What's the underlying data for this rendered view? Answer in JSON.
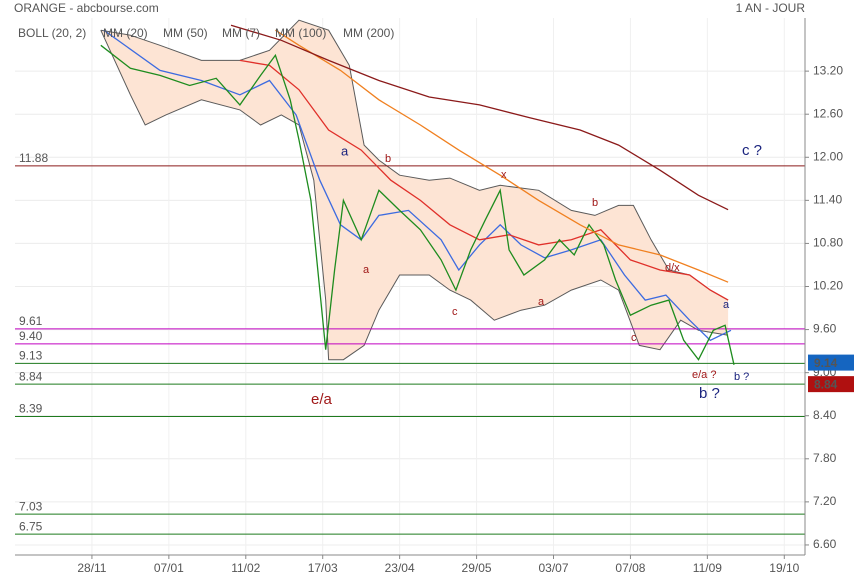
{
  "chart_data": {
    "type": "line",
    "title": "ORANGE - abcbourse.com",
    "period": "1 AN - JOUR",
    "xlim": [
      0,
      267
    ],
    "ylim": [
      6.46,
      13.94
    ],
    "xticks": [
      {
        "value": 26,
        "label": "28/11"
      },
      {
        "value": 52,
        "label": "07/01"
      },
      {
        "value": 78,
        "label": "11/02"
      },
      {
        "value": 104,
        "label": "17/03"
      },
      {
        "value": 130,
        "label": "23/04"
      },
      {
        "value": 156,
        "label": "29/05"
      },
      {
        "value": 182,
        "label": "03/07"
      },
      {
        "value": 208,
        "label": "07/08"
      },
      {
        "value": 234,
        "label": "11/09"
      },
      {
        "value": 260,
        "label": "19/10"
      }
    ],
    "yticks": [
      {
        "value": 13.2,
        "label": "13.20"
      },
      {
        "value": 12.6,
        "label": "12.60"
      },
      {
        "value": 12,
        "label": "12.00"
      },
      {
        "value": 11.4,
        "label": "11.40"
      },
      {
        "value": 10.8,
        "label": "10.80"
      },
      {
        "value": 10.2,
        "label": "10.20"
      },
      {
        "value": 9.6,
        "label": "9.60"
      },
      {
        "value": 9,
        "label": "9.00"
      },
      {
        "value": 8.4,
        "label": "8.40"
      },
      {
        "value": 7.8,
        "label": "7.80"
      },
      {
        "value": 7.2,
        "label": "7.20"
      },
      {
        "value": 6.6,
        "label": "6.60"
      }
    ],
    "grid": true,
    "bollinger": {
      "name": "BOLL (20, 2)",
      "color": "#5a5a5a",
      "fill": "#fde4d4",
      "upper": {
        "x": [
          29,
          39,
          49,
          63,
          76,
          86,
          96,
          106,
          113,
          118,
          123,
          130,
          140,
          147,
          157,
          164,
          177,
          188,
          196,
          204,
          209,
          215,
          221,
          228,
          235,
          241
        ],
        "values": [
          13.77,
          13.7,
          13.56,
          13.35,
          13.35,
          13.49,
          13.91,
          13.77,
          13.28,
          12.17,
          11.96,
          11.75,
          11.68,
          11.71,
          11.54,
          11.61,
          11.54,
          11.26,
          11.19,
          11.33,
          11.33,
          10.85,
          10.43,
          10.36,
          10.15,
          10.01
        ]
      },
      "lower": {
        "x": [
          29,
          39,
          44,
          51,
          63,
          76,
          83,
          90,
          96,
          101,
          105,
          106,
          111,
          118,
          123,
          130,
          140,
          147,
          154,
          162,
          171,
          179,
          188,
          198,
          204,
          211,
          218,
          225,
          231,
          241
        ],
        "values": [
          13.77,
          12.87,
          12.45,
          12.59,
          12.8,
          12.66,
          12.45,
          12.59,
          12.45,
          11.68,
          10.01,
          9.18,
          9.18,
          9.38,
          9.87,
          10.36,
          10.36,
          10.15,
          10.01,
          9.73,
          9.87,
          9.94,
          10.15,
          10.29,
          10.15,
          9.38,
          9.32,
          9.73,
          9.59,
          9.52
        ]
      }
    },
    "series": [
      {
        "name": "MM (20)",
        "color": "#3d6be0",
        "x": [
          30,
          49,
          63,
          76,
          86,
          95,
          103,
          110,
          117,
          123,
          133,
          144,
          150,
          157,
          164,
          171,
          179,
          188,
          198,
          206,
          213,
          220,
          228,
          235,
          242
        ],
        "values": [
          13.77,
          13.21,
          13.07,
          12.87,
          13.07,
          12.59,
          11.68,
          11.06,
          10.85,
          11.19,
          11.26,
          10.85,
          10.43,
          10.78,
          11.06,
          10.78,
          10.6,
          10.71,
          10.85,
          10.36,
          10.01,
          10.08,
          9.73,
          9.45,
          9.59
        ]
      },
      {
        "name": "MM (50)",
        "color": "#e0302a",
        "x": [
          76,
          86,
          96,
          106,
          117,
          127,
          137,
          147,
          157,
          167,
          177,
          188,
          198,
          208,
          218,
          228,
          235,
          241
        ],
        "values": [
          13.35,
          13.28,
          12.94,
          12.38,
          12.1,
          11.68,
          11.4,
          11.06,
          10.85,
          10.92,
          10.78,
          10.85,
          10.99,
          10.57,
          10.43,
          10.36,
          10.15,
          10.01
        ]
      },
      {
        "name": "MM (7)",
        "color": "#1e8c1e",
        "x": [
          29,
          39,
          49,
          59,
          68,
          76,
          83,
          88,
          93,
          96,
          100,
          102,
          105,
          108,
          111,
          117,
          123,
          130,
          137,
          144,
          149,
          154,
          159,
          164,
          167,
          172,
          179,
          184,
          189,
          194,
          199,
          203,
          208,
          215,
          221,
          226,
          231,
          236,
          240,
          243
        ],
        "values": [
          13.56,
          13.24,
          13.14,
          13.0,
          13.1,
          12.73,
          13.14,
          13.42,
          12.8,
          12.24,
          11.4,
          10.57,
          9.32,
          10.43,
          11.4,
          10.85,
          11.54,
          11.26,
          10.99,
          10.57,
          10.15,
          10.71,
          11.13,
          11.54,
          10.71,
          10.36,
          10.57,
          10.85,
          10.64,
          11.06,
          10.78,
          10.29,
          9.8,
          9.94,
          10.01,
          9.45,
          9.18,
          9.59,
          9.66,
          9.11
        ]
      },
      {
        "name": "MM (100)",
        "color": "#f08020",
        "x": [
          88,
          96,
          110,
          123,
          137,
          150,
          164,
          177,
          191,
          204,
          218,
          231,
          241
        ],
        "values": [
          13.77,
          13.56,
          13.21,
          12.8,
          12.45,
          12.1,
          11.75,
          11.4,
          11.06,
          10.78,
          10.64,
          10.43,
          10.26
        ]
      },
      {
        "name": "MM (200)",
        "color": "#8b1a1a",
        "x": [
          73,
          90,
          106,
          123,
          140,
          157,
          174,
          191,
          204,
          218,
          231,
          241
        ],
        "values": [
          13.84,
          13.63,
          13.35,
          13.07,
          12.84,
          12.73,
          12.55,
          12.38,
          12.17,
          11.82,
          11.47,
          11.27
        ]
      }
    ],
    "levels": [
      {
        "value": 11.88,
        "label": "11.88",
        "color": "#8b1a1a"
      },
      {
        "value": 9.61,
        "label": "9.61",
        "color": "#c000c0"
      },
      {
        "value": 9.4,
        "label": "9.40",
        "color": "#c000c0"
      },
      {
        "value": 9.13,
        "label": "9.13",
        "color": "#1e7a1e"
      },
      {
        "value": 8.84,
        "label": "8.84",
        "color": "#1e7a1e"
      },
      {
        "value": 8.39,
        "label": "8.39",
        "color": "#1e7a1e"
      },
      {
        "value": 7.03,
        "label": "7.03",
        "color": "#1e7a1e"
      },
      {
        "value": 6.75,
        "label": "6.75",
        "color": "#1e7a1e"
      }
    ],
    "price_tags": [
      {
        "value": 9.14,
        "color": "#1565c0"
      },
      {
        "value": 8.84,
        "color": "#b01010"
      }
    ],
    "annotations": [
      "a",
      "b",
      "a",
      "c",
      "x",
      "a",
      "b",
      "c",
      "d/x",
      "a",
      "e/a ?",
      "b ?",
      "b ?",
      "e/a",
      "c ?"
    ]
  }
}
